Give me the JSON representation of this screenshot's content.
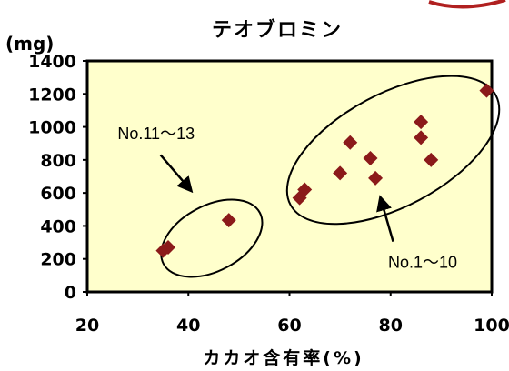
{
  "chart_data": {
    "type": "scatter",
    "title": "テオブロミン",
    "xlabel": "カカオ含有率(%)",
    "ylabel": "(mg)",
    "xlim": [
      20,
      100
    ],
    "ylim": [
      0,
      1400
    ],
    "xticks": [
      "20",
      "40",
      "60",
      "80",
      "100"
    ],
    "yticks": [
      "0",
      "200",
      "400",
      "600",
      "800",
      "1000",
      "1200",
      "1400"
    ],
    "grid": false,
    "colors": {
      "background": "#ffffcc",
      "marker": "#8b1a1a"
    },
    "series": [
      {
        "points": [
          {
            "x": 35,
            "y": 250
          },
          {
            "x": 36,
            "y": 270
          },
          {
            "x": 48,
            "y": 435
          },
          {
            "x": 62,
            "y": 570
          },
          {
            "x": 63,
            "y": 620
          },
          {
            "x": 70,
            "y": 720
          },
          {
            "x": 72,
            "y": 905
          },
          {
            "x": 76,
            "y": 810
          },
          {
            "x": 77,
            "y": 690
          },
          {
            "x": 86,
            "y": 1030
          },
          {
            "x": 86,
            "y": 935
          },
          {
            "x": 88,
            "y": 800
          },
          {
            "x": 99,
            "y": 1220
          }
        ]
      }
    ],
    "annotations": [
      {
        "text": "No.11～13"
      },
      {
        "text": "No.1～10"
      }
    ]
  }
}
